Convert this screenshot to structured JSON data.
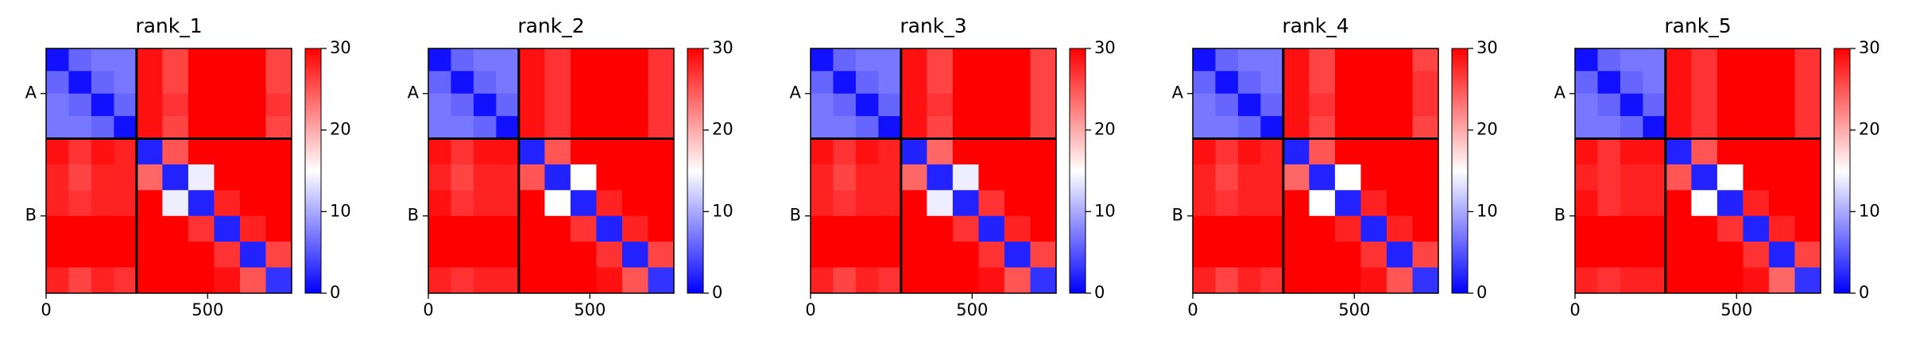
{
  "chart_data": [
    {
      "type": "heatmap",
      "title": "rank_1",
      "colormap": "bwr",
      "clim": [
        0,
        30
      ],
      "cticks": [
        0,
        10,
        20,
        30
      ],
      "x_edges": [
        0,
        70,
        140,
        210,
        280,
        360,
        440,
        520,
        600,
        680,
        760
      ],
      "xlim": [
        0,
        760
      ],
      "ylim": [
        760,
        0
      ],
      "xticks": [
        0,
        500
      ],
      "yticks": [
        {
          "value": 140,
          "label": "A"
        },
        {
          "value": 520,
          "label": "B"
        }
      ],
      "chain_breaks": [
        280
      ],
      "z": [
        [
          1,
          6,
          7,
          7,
          29,
          26,
          30,
          30,
          30,
          26
        ],
        [
          6,
          1,
          6,
          7,
          29,
          26,
          30,
          30,
          30,
          26
        ],
        [
          7,
          6,
          1,
          6,
          29,
          27,
          30,
          30,
          30,
          27
        ],
        [
          7,
          7,
          6,
          1,
          29,
          26,
          30,
          30,
          30,
          26
        ],
        [
          29,
          27,
          29,
          28,
          2,
          25,
          30,
          30,
          30,
          30
        ],
        [
          28,
          26,
          28,
          28,
          24,
          2,
          14,
          30,
          30,
          30
        ],
        [
          28,
          27,
          28,
          28,
          30,
          14,
          2,
          28,
          30,
          30
        ],
        [
          30,
          30,
          30,
          30,
          30,
          30,
          27,
          2,
          28,
          30
        ],
        [
          30,
          30,
          30,
          30,
          30,
          30,
          30,
          27,
          2,
          26
        ],
        [
          28,
          26,
          28,
          27,
          30,
          30,
          30,
          29,
          25,
          3
        ]
      ]
    },
    {
      "type": "heatmap",
      "title": "rank_2",
      "colormap": "bwr",
      "clim": [
        0,
        30
      ],
      "cticks": [
        0,
        10,
        20,
        30
      ],
      "x_edges": [
        0,
        70,
        140,
        210,
        280,
        360,
        440,
        520,
        600,
        680,
        760
      ],
      "xlim": [
        0,
        760
      ],
      "ylim": [
        760,
        0
      ],
      "xticks": [
        0,
        500
      ],
      "yticks": [
        {
          "value": 140,
          "label": "A"
        },
        {
          "value": 520,
          "label": "B"
        }
      ],
      "chain_breaks": [
        280
      ],
      "z": [
        [
          1,
          6,
          7,
          7,
          29,
          27,
          30,
          30,
          30,
          27
        ],
        [
          6,
          1,
          6,
          7,
          29,
          27,
          30,
          30,
          30,
          27
        ],
        [
          7,
          6,
          1,
          6,
          29,
          27,
          30,
          30,
          30,
          27
        ],
        [
          7,
          7,
          6,
          1,
          29,
          27,
          30,
          30,
          30,
          27
        ],
        [
          29,
          27,
          29,
          29,
          2,
          25,
          30,
          30,
          30,
          30
        ],
        [
          28,
          26,
          28,
          28,
          25,
          2,
          15,
          30,
          30,
          30
        ],
        [
          29,
          27,
          28,
          28,
          30,
          15,
          2,
          28,
          30,
          30
        ],
        [
          30,
          30,
          30,
          30,
          30,
          30,
          27,
          2,
          28,
          30
        ],
        [
          30,
          30,
          30,
          30,
          30,
          30,
          30,
          27,
          2,
          26
        ],
        [
          28,
          27,
          28,
          28,
          30,
          30,
          30,
          29,
          25,
          3
        ]
      ]
    },
    {
      "type": "heatmap",
      "title": "rank_3",
      "colormap": "bwr",
      "clim": [
        0,
        30
      ],
      "cticks": [
        0,
        10,
        20,
        30
      ],
      "x_edges": [
        0,
        70,
        140,
        210,
        280,
        360,
        440,
        520,
        600,
        680,
        760
      ],
      "xlim": [
        0,
        760
      ],
      "ylim": [
        760,
        0
      ],
      "xticks": [
        0,
        500
      ],
      "yticks": [
        {
          "value": 140,
          "label": "A"
        },
        {
          "value": 520,
          "label": "B"
        }
      ],
      "chain_breaks": [
        280
      ],
      "z": [
        [
          1,
          6,
          7,
          7,
          29,
          26,
          30,
          30,
          30,
          26
        ],
        [
          6,
          1,
          6,
          7,
          29,
          26,
          30,
          30,
          30,
          26
        ],
        [
          7,
          6,
          1,
          6,
          29,
          27,
          30,
          30,
          30,
          26
        ],
        [
          7,
          7,
          6,
          1,
          29,
          26,
          30,
          30,
          30,
          26
        ],
        [
          29,
          27,
          29,
          28,
          2,
          24,
          30,
          30,
          30,
          30
        ],
        [
          28,
          26,
          28,
          28,
          24,
          2,
          14,
          30,
          30,
          30
        ],
        [
          28,
          27,
          28,
          28,
          30,
          14,
          2,
          27,
          30,
          30
        ],
        [
          30,
          30,
          30,
          30,
          30,
          30,
          27,
          2,
          28,
          30
        ],
        [
          30,
          30,
          30,
          30,
          30,
          30,
          30,
          27,
          2,
          26
        ],
        [
          28,
          26,
          28,
          27,
          30,
          30,
          30,
          29,
          25,
          3
        ]
      ]
    },
    {
      "type": "heatmap",
      "title": "rank_4",
      "colormap": "bwr",
      "clim": [
        0,
        30
      ],
      "cticks": [
        0,
        10,
        20,
        30
      ],
      "x_edges": [
        0,
        70,
        140,
        210,
        280,
        360,
        440,
        520,
        600,
        680,
        760
      ],
      "xlim": [
        0,
        760
      ],
      "ylim": [
        760,
        0
      ],
      "xticks": [
        0,
        500
      ],
      "yticks": [
        {
          "value": 140,
          "label": "A"
        },
        {
          "value": 520,
          "label": "B"
        }
      ],
      "chain_breaks": [
        280
      ],
      "z": [
        [
          1,
          6,
          7,
          7,
          29,
          26,
          30,
          30,
          30,
          26
        ],
        [
          6,
          1,
          6,
          7,
          29,
          26,
          30,
          30,
          30,
          27
        ],
        [
          7,
          6,
          1,
          6,
          29,
          27,
          30,
          30,
          30,
          27
        ],
        [
          7,
          7,
          6,
          1,
          29,
          26,
          30,
          30,
          30,
          26
        ],
        [
          29,
          27,
          29,
          28,
          2,
          25,
          30,
          30,
          30,
          30
        ],
        [
          28,
          26,
          28,
          28,
          24,
          2,
          15,
          30,
          30,
          30
        ],
        [
          28,
          27,
          28,
          28,
          30,
          15,
          2,
          28,
          30,
          30
        ],
        [
          30,
          30,
          30,
          30,
          30,
          30,
          28,
          2,
          28,
          30
        ],
        [
          30,
          30,
          30,
          30,
          30,
          30,
          30,
          27,
          2,
          26
        ],
        [
          28,
          26,
          28,
          27,
          30,
          30,
          30,
          29,
          25,
          3
        ]
      ]
    },
    {
      "type": "heatmap",
      "title": "rank_5",
      "colormap": "bwr",
      "clim": [
        0,
        30
      ],
      "cticks": [
        0,
        10,
        20,
        30
      ],
      "x_edges": [
        0,
        70,
        140,
        210,
        280,
        360,
        440,
        520,
        600,
        680,
        760
      ],
      "xlim": [
        0,
        760
      ],
      "ylim": [
        760,
        0
      ],
      "xticks": [
        0,
        500
      ],
      "yticks": [
        {
          "value": 140,
          "label": "A"
        },
        {
          "value": 520,
          "label": "B"
        }
      ],
      "chain_breaks": [
        280
      ],
      "z": [
        [
          1,
          6,
          7,
          7,
          29,
          27,
          30,
          30,
          30,
          27
        ],
        [
          6,
          1,
          6,
          7,
          29,
          27,
          30,
          30,
          30,
          27
        ],
        [
          7,
          6,
          1,
          6,
          29,
          27,
          30,
          30,
          30,
          27
        ],
        [
          7,
          7,
          6,
          1,
          29,
          27,
          30,
          30,
          30,
          27
        ],
        [
          29,
          27,
          29,
          29,
          2,
          25,
          30,
          30,
          30,
          30
        ],
        [
          28,
          27,
          28,
          28,
          25,
          2,
          15,
          30,
          30,
          30
        ],
        [
          29,
          27,
          28,
          28,
          30,
          15,
          2,
          28,
          30,
          30
        ],
        [
          30,
          30,
          30,
          30,
          30,
          30,
          27,
          2,
          28,
          30
        ],
        [
          30,
          30,
          30,
          30,
          30,
          30,
          30,
          27,
          2,
          26
        ],
        [
          28,
          27,
          28,
          28,
          30,
          30,
          30,
          29,
          24,
          3
        ]
      ]
    }
  ]
}
